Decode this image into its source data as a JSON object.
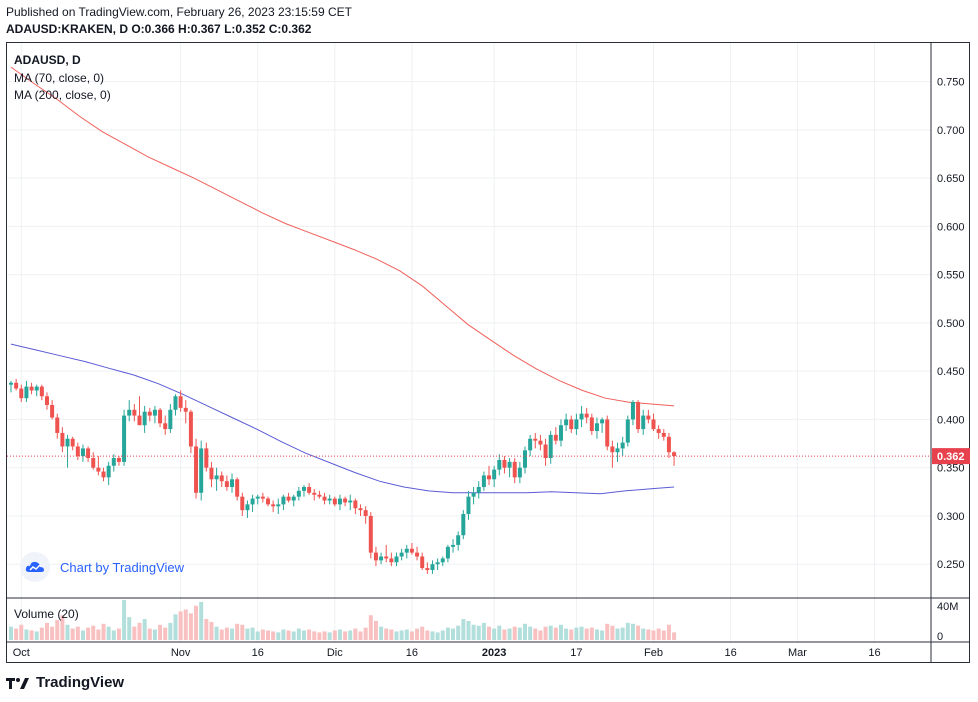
{
  "header": {
    "published": "Published on TradingView.com, February 26, 2023 23:15:59 CET",
    "symbol": "ADAUSD:KRAKEN, D",
    "ohlc": "O:0.366 H:0.367 L:0.352 C:0.362"
  },
  "legend": {
    "title": "ADAUSD, D",
    "ma70": "MA (70, close, 0)",
    "ma200": "MA (200, close, 0)",
    "volume": "Volume (20)"
  },
  "watermark": "Chart by TradingView",
  "footer_logo": "TradingView",
  "colors": {
    "up": "#26a69a",
    "down": "#ef5350",
    "ma70": "#5b5bd6",
    "ma200": "#f0605a",
    "last": "#e8414e"
  },
  "chart_data": {
    "type": "candlestick",
    "symbol": "ADAUSD",
    "interval": "D",
    "ylim": [
      0.215,
      0.79
    ],
    "yticks": [
      0.25,
      0.3,
      0.35,
      0.4,
      0.45,
      0.5,
      0.55,
      0.6,
      0.65,
      0.7,
      0.75
    ],
    "ytick_labels": [
      "0.250",
      "0.300",
      "0.350",
      "0.400",
      "0.450",
      "0.500",
      "0.550",
      "0.600",
      "0.650",
      "0.700",
      "0.750"
    ],
    "volume_ticks": [
      "40M",
      "0"
    ],
    "x_axis_labels": [
      {
        "text": "Oct",
        "day": 2
      },
      {
        "text": "Nov",
        "day": 33
      },
      {
        "text": "16",
        "day": 48
      },
      {
        "text": "Dic",
        "day": 63
      },
      {
        "text": "16",
        "day": 78
      },
      {
        "text": "2023",
        "day": 94
      },
      {
        "text": "17",
        "day": 110
      },
      {
        "text": "Feb",
        "day": 125
      },
      {
        "text": "16",
        "day": 140
      },
      {
        "text": "Mar",
        "day": 153
      },
      {
        "text": "16",
        "day": 168
      }
    ],
    "last_price": 0.362,
    "last_price_label": "0.362",
    "candles": [
      [
        0.436,
        0.44,
        0.428,
        0.438,
        14
      ],
      [
        0.438,
        0.442,
        0.43,
        0.432,
        12
      ],
      [
        0.432,
        0.436,
        0.418,
        0.422,
        16
      ],
      [
        0.422,
        0.44,
        0.418,
        0.434,
        11
      ],
      [
        0.434,
        0.438,
        0.426,
        0.43,
        10
      ],
      [
        0.43,
        0.436,
        0.424,
        0.434,
        9
      ],
      [
        0.434,
        0.436,
        0.42,
        0.424,
        13
      ],
      [
        0.424,
        0.428,
        0.41,
        0.415,
        18
      ],
      [
        0.415,
        0.42,
        0.4,
        0.402,
        14
      ],
      [
        0.402,
        0.406,
        0.38,
        0.386,
        21
      ],
      [
        0.386,
        0.392,
        0.366,
        0.372,
        26
      ],
      [
        0.372,
        0.384,
        0.35,
        0.38,
        16
      ],
      [
        0.38,
        0.382,
        0.368,
        0.372,
        12
      ],
      [
        0.372,
        0.376,
        0.358,
        0.362,
        14
      ],
      [
        0.362,
        0.374,
        0.356,
        0.37,
        10
      ],
      [
        0.37,
        0.372,
        0.356,
        0.36,
        13
      ],
      [
        0.36,
        0.366,
        0.348,
        0.35,
        15
      ],
      [
        0.35,
        0.362,
        0.342,
        0.346,
        11
      ],
      [
        0.346,
        0.35,
        0.336,
        0.34,
        17
      ],
      [
        0.34,
        0.356,
        0.332,
        0.352,
        14
      ],
      [
        0.352,
        0.364,
        0.346,
        0.36,
        10
      ],
      [
        0.36,
        0.362,
        0.352,
        0.356,
        12
      ],
      [
        0.356,
        0.41,
        0.352,
        0.404,
        42
      ],
      [
        0.404,
        0.42,
        0.398,
        0.41,
        24
      ],
      [
        0.41,
        0.416,
        0.398,
        0.404,
        14
      ],
      [
        0.404,
        0.424,
        0.396,
        0.394,
        18
      ],
      [
        0.394,
        0.414,
        0.386,
        0.408,
        22
      ],
      [
        0.408,
        0.412,
        0.398,
        0.404,
        12
      ],
      [
        0.404,
        0.414,
        0.396,
        0.41,
        11
      ],
      [
        0.41,
        0.412,
        0.392,
        0.396,
        16
      ],
      [
        0.396,
        0.404,
        0.384,
        0.39,
        13
      ],
      [
        0.39,
        0.416,
        0.386,
        0.41,
        18
      ],
      [
        0.41,
        0.426,
        0.404,
        0.424,
        27
      ],
      [
        0.424,
        0.43,
        0.408,
        0.412,
        30
      ],
      [
        0.412,
        0.42,
        0.396,
        0.408,
        32
      ],
      [
        0.408,
        0.41,
        0.365,
        0.372,
        28
      ],
      [
        0.372,
        0.38,
        0.318,
        0.324,
        36
      ],
      [
        0.324,
        0.378,
        0.316,
        0.37,
        40
      ],
      [
        0.37,
        0.376,
        0.346,
        0.35,
        22
      ],
      [
        0.35,
        0.356,
        0.33,
        0.338,
        19
      ],
      [
        0.338,
        0.35,
        0.326,
        0.342,
        14
      ],
      [
        0.342,
        0.346,
        0.33,
        0.336,
        11
      ],
      [
        0.336,
        0.342,
        0.326,
        0.33,
        13
      ],
      [
        0.33,
        0.344,
        0.324,
        0.338,
        12
      ],
      [
        0.338,
        0.34,
        0.316,
        0.32,
        17
      ],
      [
        0.32,
        0.324,
        0.3,
        0.306,
        16
      ],
      [
        0.306,
        0.316,
        0.298,
        0.312,
        12
      ],
      [
        0.312,
        0.322,
        0.304,
        0.318,
        13
      ],
      [
        0.318,
        0.322,
        0.312,
        0.32,
        9
      ],
      [
        0.32,
        0.324,
        0.314,
        0.318,
        11
      ],
      [
        0.318,
        0.32,
        0.31,
        0.312,
        10
      ],
      [
        0.312,
        0.316,
        0.304,
        0.31,
        9
      ],
      [
        0.31,
        0.318,
        0.302,
        0.312,
        8
      ],
      [
        0.312,
        0.322,
        0.306,
        0.32,
        11
      ],
      [
        0.32,
        0.324,
        0.314,
        0.316,
        10
      ],
      [
        0.316,
        0.322,
        0.31,
        0.32,
        9
      ],
      [
        0.32,
        0.33,
        0.316,
        0.326,
        12
      ],
      [
        0.326,
        0.332,
        0.32,
        0.33,
        10
      ],
      [
        0.33,
        0.334,
        0.322,
        0.324,
        11
      ],
      [
        0.324,
        0.328,
        0.316,
        0.322,
        9
      ],
      [
        0.322,
        0.326,
        0.318,
        0.32,
        8
      ],
      [
        0.32,
        0.324,
        0.312,
        0.316,
        9
      ],
      [
        0.316,
        0.322,
        0.312,
        0.318,
        8
      ],
      [
        0.318,
        0.32,
        0.31,
        0.312,
        10
      ],
      [
        0.312,
        0.322,
        0.306,
        0.318,
        11
      ],
      [
        0.318,
        0.32,
        0.31,
        0.314,
        9
      ],
      [
        0.314,
        0.322,
        0.306,
        0.316,
        10
      ],
      [
        0.316,
        0.318,
        0.302,
        0.308,
        12
      ],
      [
        0.308,
        0.312,
        0.3,
        0.306,
        9
      ],
      [
        0.306,
        0.31,
        0.292,
        0.3,
        13
      ],
      [
        0.3,
        0.304,
        0.256,
        0.262,
        26
      ],
      [
        0.262,
        0.268,
        0.248,
        0.254,
        20
      ],
      [
        0.254,
        0.262,
        0.25,
        0.258,
        14
      ],
      [
        0.258,
        0.27,
        0.252,
        0.256,
        12
      ],
      [
        0.256,
        0.262,
        0.248,
        0.252,
        11
      ],
      [
        0.252,
        0.262,
        0.248,
        0.258,
        9
      ],
      [
        0.258,
        0.266,
        0.254,
        0.262,
        10
      ],
      [
        0.262,
        0.27,
        0.256,
        0.266,
        11
      ],
      [
        0.266,
        0.272,
        0.26,
        0.262,
        9
      ],
      [
        0.262,
        0.268,
        0.254,
        0.258,
        12
      ],
      [
        0.258,
        0.262,
        0.244,
        0.246,
        14
      ],
      [
        0.246,
        0.252,
        0.24,
        0.244,
        10
      ],
      [
        0.244,
        0.254,
        0.24,
        0.25,
        9
      ],
      [
        0.25,
        0.256,
        0.244,
        0.252,
        8
      ],
      [
        0.252,
        0.258,
        0.248,
        0.256,
        10
      ],
      [
        0.256,
        0.27,
        0.252,
        0.268,
        13
      ],
      [
        0.268,
        0.276,
        0.262,
        0.27,
        12
      ],
      [
        0.27,
        0.284,
        0.264,
        0.28,
        15
      ],
      [
        0.28,
        0.306,
        0.276,
        0.302,
        22
      ],
      [
        0.302,
        0.326,
        0.296,
        0.32,
        20
      ],
      [
        0.32,
        0.33,
        0.312,
        0.324,
        16
      ],
      [
        0.324,
        0.336,
        0.318,
        0.33,
        15
      ],
      [
        0.33,
        0.346,
        0.326,
        0.342,
        18
      ],
      [
        0.342,
        0.352,
        0.332,
        0.338,
        14
      ],
      [
        0.338,
        0.352,
        0.33,
        0.348,
        12
      ],
      [
        0.348,
        0.364,
        0.342,
        0.358,
        15
      ],
      [
        0.358,
        0.362,
        0.344,
        0.35,
        11
      ],
      [
        0.35,
        0.36,
        0.34,
        0.356,
        12
      ],
      [
        0.356,
        0.36,
        0.334,
        0.34,
        14
      ],
      [
        0.34,
        0.356,
        0.334,
        0.35,
        13
      ],
      [
        0.35,
        0.372,
        0.344,
        0.368,
        17
      ],
      [
        0.368,
        0.384,
        0.362,
        0.38,
        14
      ],
      [
        0.38,
        0.386,
        0.37,
        0.378,
        12
      ],
      [
        0.378,
        0.384,
        0.368,
        0.374,
        10
      ],
      [
        0.374,
        0.38,
        0.352,
        0.36,
        14
      ],
      [
        0.36,
        0.388,
        0.354,
        0.384,
        15
      ],
      [
        0.384,
        0.392,
        0.374,
        0.378,
        13
      ],
      [
        0.378,
        0.4,
        0.372,
        0.394,
        16
      ],
      [
        0.394,
        0.406,
        0.388,
        0.4,
        12
      ],
      [
        0.4,
        0.404,
        0.386,
        0.39,
        11
      ],
      [
        0.39,
        0.406,
        0.384,
        0.4,
        13
      ],
      [
        0.4,
        0.414,
        0.392,
        0.406,
        14
      ],
      [
        0.406,
        0.412,
        0.396,
        0.402,
        12
      ],
      [
        0.402,
        0.406,
        0.384,
        0.388,
        13
      ],
      [
        0.388,
        0.402,
        0.38,
        0.396,
        11
      ],
      [
        0.396,
        0.402,
        0.386,
        0.4,
        10
      ],
      [
        0.4,
        0.404,
        0.368,
        0.372,
        17
      ],
      [
        0.372,
        0.378,
        0.35,
        0.366,
        15
      ],
      [
        0.366,
        0.376,
        0.356,
        0.37,
        12
      ],
      [
        0.37,
        0.382,
        0.362,
        0.376,
        13
      ],
      [
        0.376,
        0.404,
        0.372,
        0.4,
        18
      ],
      [
        0.4,
        0.42,
        0.394,
        0.418,
        17
      ],
      [
        0.418,
        0.42,
        0.386,
        0.39,
        15
      ],
      [
        0.39,
        0.41,
        0.384,
        0.404,
        12
      ],
      [
        0.404,
        0.41,
        0.396,
        0.4,
        11
      ],
      [
        0.4,
        0.406,
        0.388,
        0.39,
        10
      ],
      [
        0.39,
        0.394,
        0.38,
        0.386,
        12
      ],
      [
        0.386,
        0.39,
        0.378,
        0.382,
        10
      ],
      [
        0.382,
        0.386,
        0.36,
        0.366,
        16
      ],
      [
        0.366,
        0.367,
        0.352,
        0.362,
        8
      ]
    ],
    "series": [
      {
        "name": "MA (70, close, 0)",
        "start": 0,
        "values": [
          0.478,
          0.472,
          0.466,
          0.46,
          0.453,
          0.446,
          0.437,
          0.426,
          0.414,
          0.402,
          0.39,
          0.377,
          0.365,
          0.355,
          0.345,
          0.336,
          0.33,
          0.326,
          0.324,
          0.324,
          0.324,
          0.324,
          0.325,
          0.324,
          0.323,
          0.326,
          0.328,
          0.33
        ]
      },
      {
        "name": "MA (200, close, 0)",
        "start": 0,
        "values": [
          0.765,
          0.748,
          0.732,
          0.714,
          0.698,
          0.685,
          0.672,
          0.661,
          0.65,
          0.638,
          0.626,
          0.614,
          0.603,
          0.594,
          0.585,
          0.576,
          0.566,
          0.554,
          0.538,
          0.518,
          0.498,
          0.482,
          0.466,
          0.452,
          0.44,
          0.43,
          0.422,
          0.418,
          0.416,
          0.414
        ]
      }
    ]
  }
}
